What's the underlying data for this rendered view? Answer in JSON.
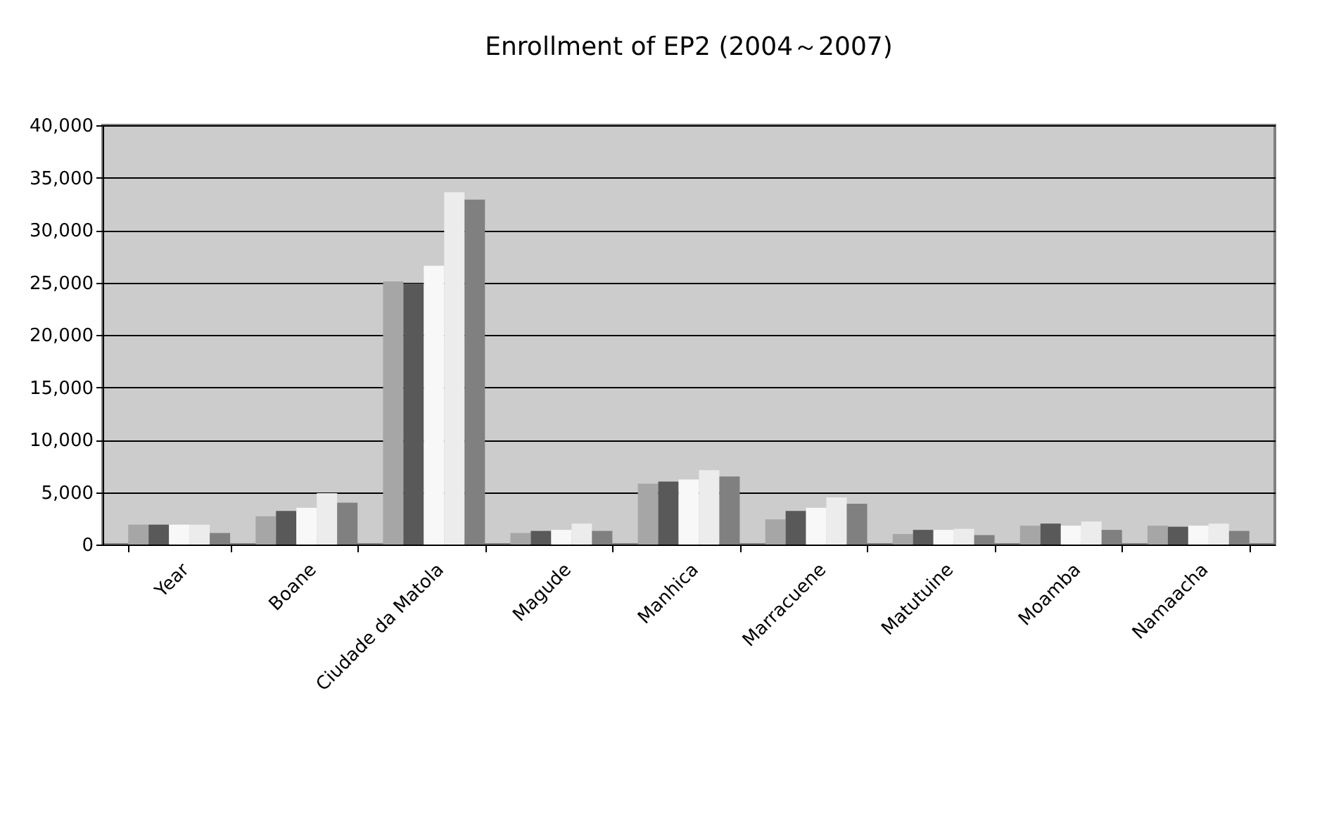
{
  "chart_data": {
    "type": "bar",
    "title": "Enrollment of EP2 (2004～2007)",
    "categories": [
      "Year",
      "Boane",
      "Ciudade da Matola",
      "Magude",
      "Manhica",
      "Marracuene",
      "Matutuine",
      "Moamba",
      "Namaacha"
    ],
    "series": [
      {
        "color": "#a6a6a6",
        "values": [
          1900,
          2700,
          25100,
          1100,
          5800,
          2400,
          1000,
          1800,
          1800
        ]
      },
      {
        "color": "#595959",
        "values": [
          1900,
          3200,
          24900,
          1300,
          6000,
          3200,
          1400,
          2000,
          1700
        ]
      },
      {
        "color": "#f8f8f8",
        "values": [
          1900,
          3500,
          26600,
          1400,
          6200,
          3500,
          1400,
          1800,
          1800
        ]
      },
      {
        "color": "#ececec",
        "values": [
          1900,
          4900,
          33600,
          2000,
          7100,
          4500,
          1500,
          2200,
          2000
        ]
      },
      {
        "color": "#808080",
        "values": [
          1100,
          4000,
          32900,
          1300,
          6500,
          3900,
          900,
          1400,
          1300
        ]
      }
    ],
    "ylim": [
      0,
      40000
    ],
    "yticks": [
      0,
      {
        "value": 5000,
        "label": "5,000"
      },
      {
        "value": 10000,
        "label": "10,000"
      },
      {
        "value": 15000,
        "label": "15,000"
      },
      {
        "value": 20000,
        "label": "20,000"
      },
      {
        "value": 25000,
        "label": "25,000"
      },
      {
        "value": 30000,
        "label": "30,000"
      },
      {
        "value": 35000,
        "label": "35,000"
      },
      {
        "value": 40000,
        "label": "40,000"
      }
    ],
    "grid": "y",
    "legend": false
  }
}
